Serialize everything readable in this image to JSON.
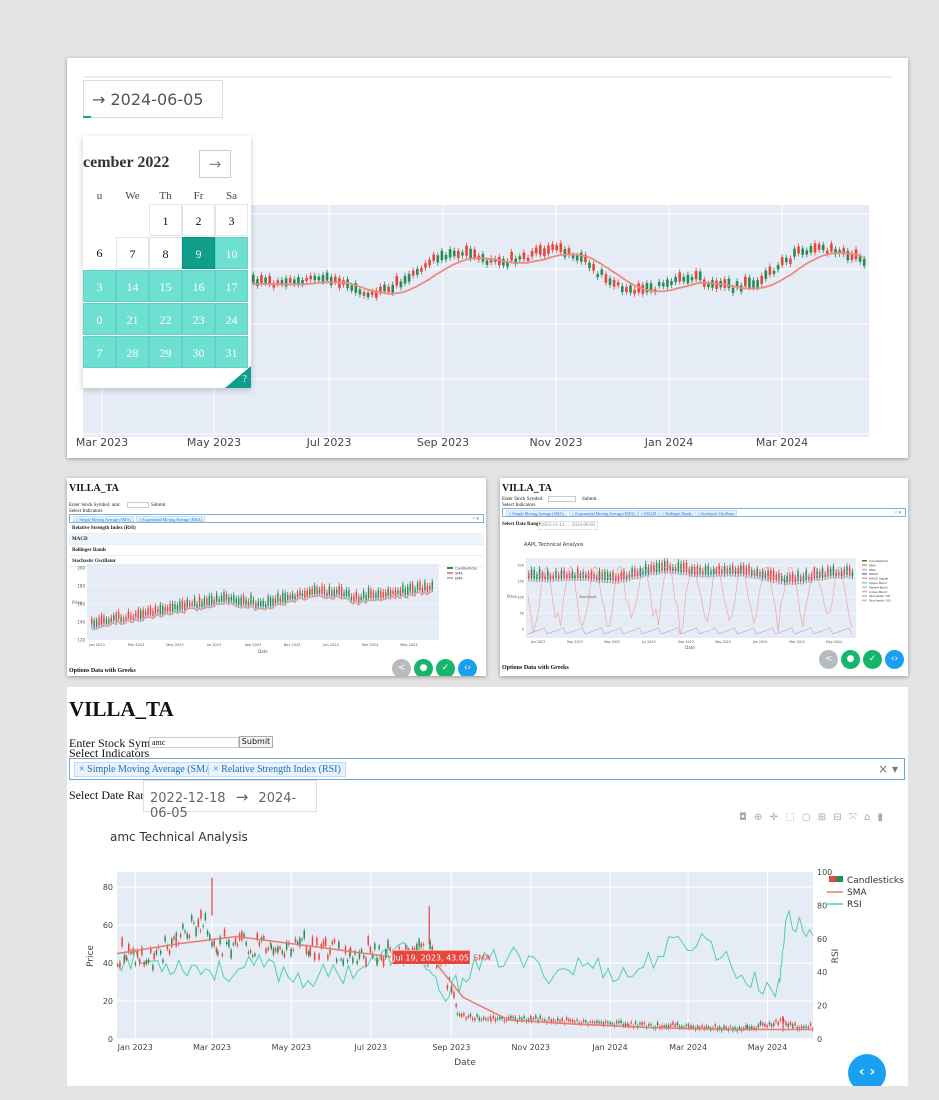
{
  "top_panel": {
    "date_range_end": "→ 2024-06-05",
    "calendar": {
      "month_title": "cember 2022",
      "next_arrow": "→",
      "weekdays": [
        "u",
        "We",
        "Th",
        "Fr",
        "Sa"
      ],
      "weeks": [
        [
          "",
          "",
          "1",
          "2",
          "3"
        ],
        [
          "6",
          "7",
          "8",
          "9",
          "10"
        ],
        [
          "3",
          "14",
          "15",
          "16",
          "17"
        ],
        [
          "0",
          "21",
          "22",
          "23",
          "24"
        ],
        [
          "7",
          "28",
          "29",
          "30",
          "31"
        ]
      ],
      "help": "?"
    },
    "x_ticks": [
      "Mar 2023",
      "May 2023",
      "Jul 2023",
      "Sep 2023",
      "Nov 2023",
      "Jan 2024",
      "Mar 2024"
    ]
  },
  "left_panel": {
    "title": "VILLA_TA",
    "symbol_label": "Enter Stock Symbol: amc",
    "submit": "Submit",
    "indicators_label": "Select Indicators",
    "tags": [
      "× Simple Moving Average (SMA)",
      "× Exponential Moving Average (EMA)"
    ],
    "clear": "× ▾",
    "options": [
      "Relative Strength Index (RSI)",
      "MACD",
      "Bollinger Bands",
      "Stochastic Oscillator"
    ],
    "legend": [
      "Candlesticks",
      "SMA",
      "EMA"
    ],
    "y_ticks": [
      "200",
      "180",
      "160",
      "140",
      "120"
    ],
    "y_label": "Price",
    "x_ticks": [
      "Jan 2023",
      "Mar 2023",
      "May 2023",
      "Jul 2023",
      "Sep 2023",
      "Nov 2023",
      "Jan 2024",
      "Mar 2024",
      "May 2024"
    ],
    "x_label": "Date",
    "bottom": "Options Data with Greeks"
  },
  "right_panel": {
    "title": "VILLA_TA",
    "symbol_label": "Enter Stock Symbol:",
    "submit": "Submit",
    "indicators_label": "Select Indicators",
    "tags": [
      "× Simple Moving Average (SMA)",
      "× Exponential Moving Average (EMA)",
      "× MACD",
      "× Bollinger Bands",
      "× Stochastic Oscillator"
    ],
    "clear": "× ▾",
    "date_range_label": "Select Date Range",
    "date_range": "2022-12-12  →  2024-06-05",
    "chart_title": "AAPL Technical Analysis",
    "legend": [
      "Candlesticks",
      "SMA",
      "EMA",
      "MACD",
      "MACD Signal",
      "Upper Band",
      "Middle Band",
      "Lower Band",
      "Stochastic %K",
      "Stochastic %D"
    ],
    "y_ticks": [
      "200",
      "150",
      "100",
      "50",
      "0"
    ],
    "y_label": "Price",
    "y2_label": "Stochastic",
    "x_ticks": [
      "Jan 2023",
      "Mar 2023",
      "May 2023",
      "Jul 2023",
      "Sep 2023",
      "Nov 2023",
      "Jan 2024",
      "Mar 2024",
      "May 2024"
    ],
    "x_label": "Date",
    "bottom": "Options Data with Greeks"
  },
  "main": {
    "title": "VILLA_TA",
    "symbol_label": "Enter Stock Symbol",
    "symbol_value": "amc",
    "submit": "Submit",
    "indicators_label": "Select Indicators",
    "tags": [
      "× Simple Moving Average (SMA)",
      "× Relative Strength Index (RSI)"
    ],
    "clear": "× ▾",
    "date_range_label": "Select Date Range",
    "date_start": "2022-12-18",
    "date_arrow": "→",
    "date_end": "2024-06-05",
    "modebar": "◘ ⊕ ✛ ⬚ ○ ⊞ ⊟ ⤧ ⌂ ▮",
    "fab": "‹ ›",
    "chart_data": {
      "type": "line",
      "title": "amc Technical Analysis",
      "xlabel": "Date",
      "ylabel": "Price",
      "y2label": "RSI",
      "x_ticks": [
        "Jan 2023",
        "Mar 2023",
        "May 2023",
        "Jul 2023",
        "Sep 2023",
        "Nov 2023",
        "Jan 2024",
        "Mar 2024",
        "May 2024"
      ],
      "y_ticks": [
        "0",
        "20",
        "40",
        "60",
        "80"
      ],
      "y2_ticks": [
        "0",
        "20",
        "40",
        "60",
        "80",
        "100"
      ],
      "ylim": [
        0,
        88
      ],
      "y2lim": [
        0,
        100
      ],
      "legend": [
        "Candlesticks",
        "SMA",
        "RSI"
      ],
      "tooltip": "(Jul 19, 2023, 43.05)",
      "tooltip_series": "SMA",
      "series": [
        {
          "name": "Candlesticks",
          "color": "#e8453c",
          "x": [
            "2022-12-18",
            "2023-01-15",
            "2023-02-01",
            "2023-02-20",
            "2023-03-05",
            "2023-03-20",
            "2023-04-15",
            "2023-05-15",
            "2023-06-15",
            "2023-07-19",
            "2023-08-10",
            "2023-08-25",
            "2023-09-05",
            "2023-10-01",
            "2023-11-01",
            "2023-12-01",
            "2024-01-15",
            "2024-03-01",
            "2024-04-15",
            "2024-05-13",
            "2024-05-20",
            "2024-06-05"
          ],
          "values": [
            44,
            40,
            52,
            60,
            50,
            48,
            50,
            47,
            44,
            43,
            44,
            38,
            12,
            10,
            10,
            9,
            7,
            6,
            5,
            9,
            6,
            6
          ]
        },
        {
          "name": "SMA",
          "color": "#ea7a70",
          "x": [
            "2022-12-18",
            "2023-02-01",
            "2023-03-20",
            "2023-05-15",
            "2023-07-19",
            "2023-08-20",
            "2023-09-10",
            "2023-10-15",
            "2023-12-01",
            "2024-02-01",
            "2024-04-01",
            "2024-06-05"
          ],
          "values": [
            45,
            50,
            54,
            49,
            43.05,
            40,
            22,
            10,
            8,
            6,
            5,
            5
          ]
        },
        {
          "name": "RSI",
          "color": "#4fd1a9",
          "x": [
            "2022-12-18",
            "2023-01-15",
            "2023-02-10",
            "2023-03-10",
            "2023-04-10",
            "2023-05-10",
            "2023-06-10",
            "2023-07-10",
            "2023-08-05",
            "2023-08-25",
            "2023-09-15",
            "2023-10-15",
            "2023-11-15",
            "2023-12-15",
            "2024-01-15",
            "2024-02-15",
            "2024-03-15",
            "2024-04-15",
            "2024-05-10",
            "2024-05-15",
            "2024-06-05"
          ],
          "values": [
            48,
            46,
            44,
            40,
            44,
            36,
            40,
            48,
            56,
            22,
            42,
            50,
            40,
            45,
            38,
            55,
            60,
            35,
            30,
            73,
            62
          ]
        }
      ]
    }
  }
}
